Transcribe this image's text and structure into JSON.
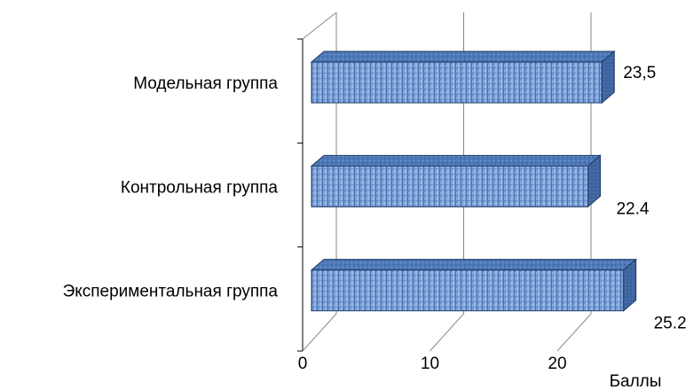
{
  "chart_data": {
    "type": "bar",
    "orientation": "horizontal",
    "style": "3d",
    "categories": [
      "Модельная группа",
      "Контрольная группа",
      "Экспериментальная группа"
    ],
    "values": [
      23.5,
      22.4,
      25.2
    ],
    "value_labels": [
      "23,5",
      "22.4",
      "25.2"
    ],
    "x_ticks": [
      "0",
      "10",
      "20"
    ],
    "xlabel": "Баллы",
    "xlim": [
      0,
      25.2
    ],
    "grid": true,
    "bar_color": "#5b86c5",
    "bar_border_color": "#1f3a66"
  }
}
